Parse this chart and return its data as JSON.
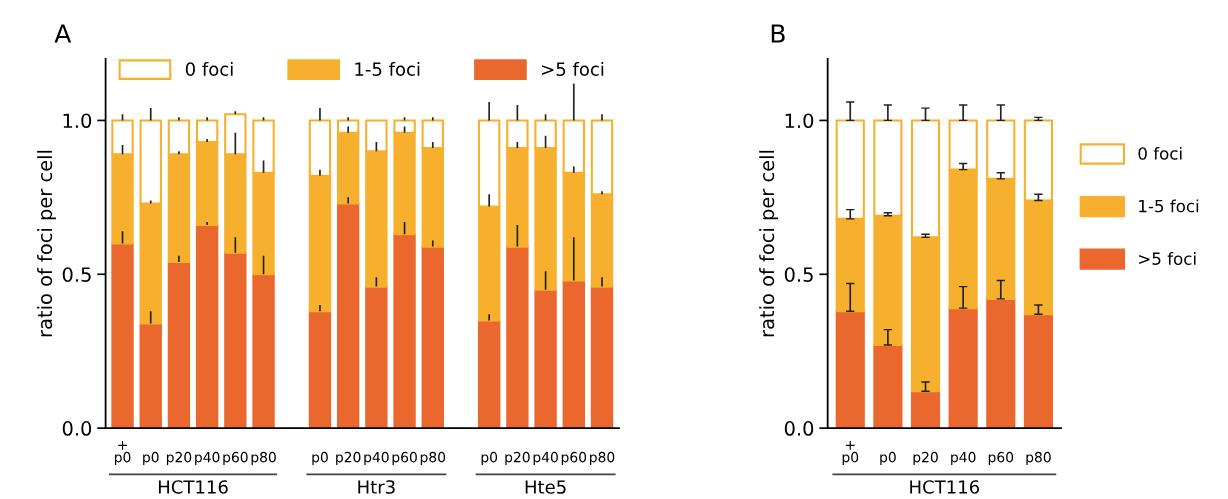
{
  "chart_data": [
    {
      "type": "bar",
      "title": "A",
      "ylabel": "ratio of foci per cell",
      "stacked": true,
      "legend": "top",
      "categories": [
        "+\np0",
        "p0",
        "p20",
        "p40",
        "p60",
        "p80",
        null,
        "p0",
        "p20",
        "p40",
        "p60",
        "p80",
        null,
        "p0",
        "p20",
        "p40",
        "p60",
        "p80"
      ],
      "ylim": [
        0,
        1.2
      ],
      "yticks": [
        {
          "value": 0,
          "label": "0.0"
        },
        {
          "value": 0.5,
          "label": "0.5"
        },
        {
          "value": 1.0,
          "label": "1.0"
        }
      ],
      "annotations": [
        "HCT116",
        "Htr3",
        "Hte5"
      ],
      "series": [
        {
          "name": ">5 foci",
          "color": "#ea672e",
          "values": [
            0.6,
            0.34,
            0.54,
            0.66,
            0.57,
            0.5,
            null,
            0.38,
            0.73,
            0.46,
            0.63,
            0.59,
            null,
            0.35,
            0.59,
            0.45,
            0.48,
            0.46
          ],
          "errors": [
            [
              0.6,
              0.64
            ],
            [
              0.34,
              0.38
            ],
            [
              0.54,
              0.56
            ],
            [
              0.66,
              0.67
            ],
            [
              0.57,
              0.62
            ],
            [
              0.5,
              0.56
            ],
            null,
            [
              0.38,
              0.4
            ],
            [
              0.73,
              0.75
            ],
            [
              0.46,
              0.49
            ],
            [
              0.63,
              0.67
            ],
            [
              0.59,
              0.61
            ],
            null,
            [
              0.35,
              0.37
            ],
            [
              0.59,
              0.66
            ],
            [
              0.45,
              0.51
            ],
            [
              0.48,
              0.62
            ],
            [
              0.46,
              0.49
            ]
          ]
        },
        {
          "name": "1-5 foci",
          "color": "#f7b02e",
          "values": [
            0.29,
            0.39,
            0.35,
            0.27,
            0.32,
            0.33,
            null,
            0.44,
            0.23,
            0.44,
            0.33,
            0.32,
            null,
            0.37,
            0.32,
            0.46,
            0.35,
            0.3
          ],
          "errors": [
            [
              0.89,
              0.92
            ],
            [
              0.73,
              0.74
            ],
            [
              0.89,
              0.9
            ],
            [
              0.93,
              0.94
            ],
            [
              0.89,
              0.96
            ],
            [
              0.83,
              0.87
            ],
            null,
            [
              0.82,
              0.84
            ],
            [
              0.96,
              0.98
            ],
            [
              0.9,
              0.93
            ],
            [
              0.96,
              0.98
            ],
            [
              0.91,
              0.93
            ],
            null,
            [
              0.72,
              0.76
            ],
            [
              0.91,
              0.93
            ],
            [
              0.91,
              0.95
            ],
            [
              0.83,
              0.85
            ],
            [
              0.76,
              0.77
            ]
          ]
        },
        {
          "name": "0 foci",
          "color": "#ffffff",
          "values": [
            0.11,
            0.27,
            0.11,
            0.07,
            0.13,
            0.17,
            null,
            0.18,
            0.04,
            0.1,
            0.04,
            0.09,
            null,
            0.28,
            0.09,
            0.09,
            0.17,
            0.24
          ],
          "errors": [
            [
              1.0,
              1.02
            ],
            [
              1.0,
              1.04
            ],
            [
              1.0,
              1.01
            ],
            [
              1.0,
              1.01
            ],
            [
              1.02,
              1.03
            ],
            [
              1.0,
              1.01
            ],
            null,
            [
              1.0,
              1.04
            ],
            [
              1.0,
              1.01
            ],
            null,
            [
              1.0,
              1.01
            ],
            [
              1.0,
              1.01
            ],
            null,
            [
              1.0,
              1.06
            ],
            [
              1.0,
              1.05
            ],
            [
              1.0,
              1.02
            ],
            [
              1.0,
              1.12
            ],
            [
              1.0,
              1.02
            ]
          ]
        }
      ]
    },
    {
      "type": "bar",
      "title": "B",
      "ylabel": "ratio of foci per cell",
      "stacked": true,
      "legend": "right",
      "categories": [
        "+\np0",
        "p0",
        "p20",
        "p40",
        "p60",
        "p80"
      ],
      "ylim": [
        0,
        1.2
      ],
      "yticks": [
        {
          "value": 0,
          "label": "0.0"
        },
        {
          "value": 0.5,
          "label": "0.5"
        },
        {
          "value": 1.0,
          "label": "1.0"
        }
      ],
      "annotations": [
        "HCT116"
      ],
      "series": [
        {
          "name": ">5 foci",
          "color": "#ea672e",
          "values": [
            0.38,
            0.27,
            0.12,
            0.39,
            0.42,
            0.37
          ],
          "errors": [
            [
              0.38,
              0.47
            ],
            [
              0.27,
              0.32
            ],
            [
              0.12,
              0.15
            ],
            [
              0.39,
              0.46
            ],
            [
              0.42,
              0.48
            ],
            [
              0.37,
              0.4
            ]
          ]
        },
        {
          "name": "1-5 foci",
          "color": "#f7b02e",
          "values": [
            0.3,
            0.42,
            0.5,
            0.45,
            0.39,
            0.37
          ],
          "errors": [
            [
              0.68,
              0.71
            ],
            [
              0.69,
              0.7
            ],
            [
              0.62,
              0.63
            ],
            [
              0.84,
              0.86
            ],
            [
              0.81,
              0.83
            ],
            [
              0.74,
              0.76
            ]
          ]
        },
        {
          "name": "0 foci",
          "color": "#ffffff",
          "values": [
            0.32,
            0.31,
            0.38,
            0.16,
            0.19,
            0.26
          ],
          "errors": [
            [
              1.0,
              1.06
            ],
            [
              1.0,
              1.05
            ],
            [
              1.0,
              1.04
            ],
            [
              1.0,
              1.05
            ],
            [
              1.0,
              1.05
            ],
            [
              1.0,
              1.01
            ]
          ]
        }
      ]
    }
  ]
}
